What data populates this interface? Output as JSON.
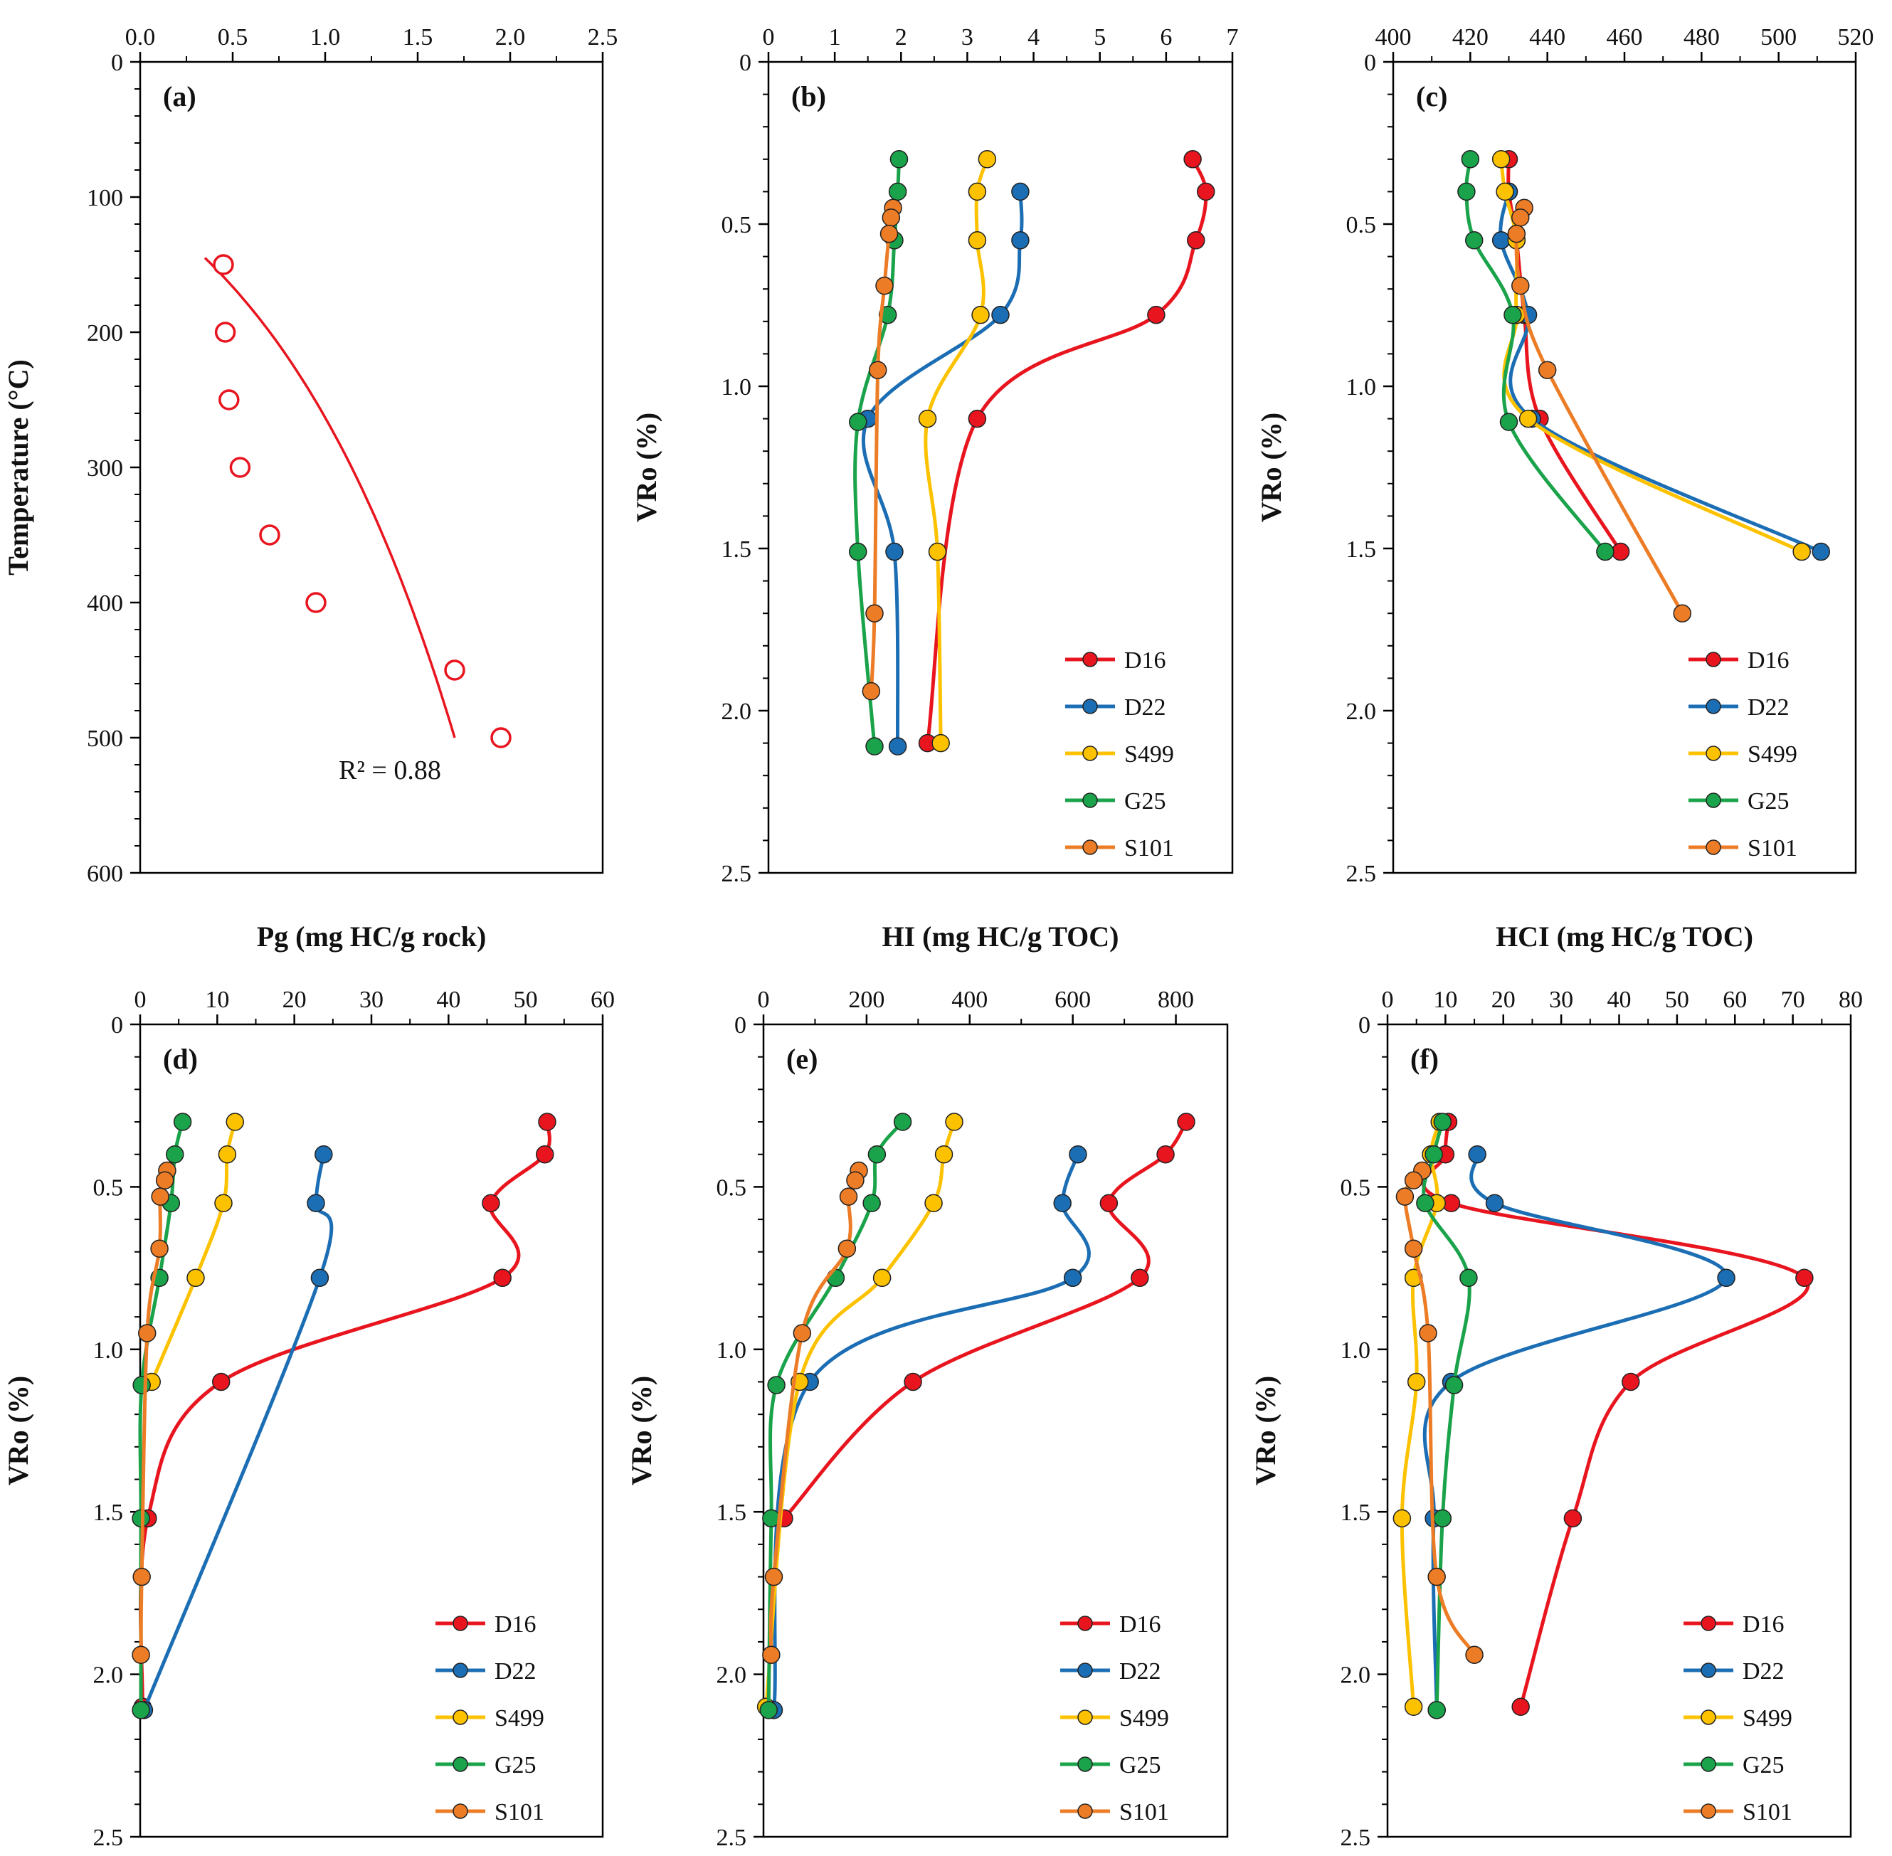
{
  "colors": {
    "D16": "#e8151f",
    "D22": "#1c6eb4",
    "S499": "#fcc200",
    "G25": "#1aa34a",
    "S101": "#ec7c25",
    "fit": "#e8151f"
  },
  "chart_data": [
    {
      "id": "a",
      "panel_label": "(a)",
      "type": "scatter",
      "xlabel": "Pg (mg HC/g rock)",
      "ylabel": "Temperature (°C)",
      "xlim": [
        0,
        2.5
      ],
      "ylim": [
        0,
        600
      ],
      "y_inverted": true,
      "x_axis_position": "top",
      "xticks": [
        0,
        0.5,
        1,
        1.5,
        2,
        2.5
      ],
      "xtick_labels": [
        "0.0",
        "0.5",
        "1.0",
        "1.5",
        "2.0",
        "2.5"
      ],
      "yticks": [
        0,
        100,
        200,
        300,
        400,
        500,
        600
      ],
      "ytick_labels": [
        "0",
        "100",
        "200",
        "300",
        "400",
        "500",
        "600"
      ],
      "series": [
        {
          "name": "Pg",
          "color": "#e8151f",
          "marker": "open-circle",
          "x": [
            0.45,
            0.46,
            0.48,
            0.54,
            0.7,
            0.95,
            1.7,
            1.95
          ],
          "y": [
            150,
            200,
            250,
            300,
            350,
            400,
            450,
            500
          ]
        }
      ],
      "fit": {
        "type": "exponential",
        "color": "#e8151f",
        "x_range": [
          0.35,
          1.7
        ],
        "y_range": [
          145,
          500
        ],
        "label": "R² = 0.88",
        "label_position": "bottom-center"
      }
    },
    {
      "id": "b",
      "panel_label": "(b)",
      "type": "line",
      "xlabel": "HI (mg HC/g TOC)",
      "ylabel": "VRo (%)",
      "xlim": [
        0,
        7
      ],
      "ylim": [
        0,
        2.5
      ],
      "y_inverted": true,
      "x_axis_position": "top",
      "xticks": [
        0,
        1,
        2,
        3,
        4,
        5,
        6,
        7
      ],
      "xtick_labels": [
        "0",
        "1",
        "2",
        "3",
        "4",
        "5",
        "6",
        "7"
      ],
      "yticks": [
        0,
        0.5,
        1,
        1.5,
        2,
        2.5
      ],
      "ytick_labels": [
        "0",
        "0.5",
        "1.0",
        "1.5",
        "2.0",
        "2.5"
      ],
      "legend_position": "bottom-right",
      "series": [
        {
          "name": "D16",
          "x": [
            6.4,
            6.6,
            6.45,
            5.85,
            3.15,
            2.4
          ],
          "y": [
            0.3,
            0.4,
            0.55,
            0.78,
            1.1,
            2.1
          ]
        },
        {
          "name": "D22",
          "x": [
            3.8,
            3.8,
            3.5,
            1.5,
            1.9,
            1.95
          ],
          "y": [
            0.4,
            0.55,
            0.78,
            1.1,
            1.51,
            2.11
          ]
        },
        {
          "name": "S499",
          "x": [
            3.3,
            3.15,
            3.15,
            3.2,
            2.4,
            2.55,
            2.6
          ],
          "y": [
            0.3,
            0.4,
            0.55,
            0.78,
            1.1,
            1.51,
            2.1
          ]
        },
        {
          "name": "G25",
          "x": [
            1.97,
            1.95,
            1.9,
            1.8,
            1.35,
            1.35,
            1.6
          ],
          "y": [
            0.3,
            0.4,
            0.55,
            0.78,
            1.11,
            1.51,
            2.11
          ]
        },
        {
          "name": "S101",
          "x": [
            1.88,
            1.85,
            1.82,
            1.75,
            1.65,
            1.6,
            1.55
          ],
          "y": [
            0.45,
            0.48,
            0.53,
            0.69,
            0.95,
            1.7,
            1.94
          ]
        }
      ]
    },
    {
      "id": "c",
      "panel_label": "(c)",
      "type": "line",
      "xlabel": "HCI (mg HC/g TOC)",
      "ylabel": "VRo (%)",
      "xlim": [
        400,
        520
      ],
      "ylim": [
        0,
        2.5
      ],
      "y_inverted": true,
      "x_axis_position": "top",
      "xticks": [
        400,
        420,
        440,
        460,
        480,
        500,
        520
      ],
      "xtick_labels": [
        "400",
        "420",
        "440",
        "460",
        "480",
        "500",
        "520"
      ],
      "yticks": [
        0,
        0.5,
        1,
        1.5,
        2,
        2.5
      ],
      "ytick_labels": [
        "0",
        "0.5",
        "1.0",
        "1.5",
        "2.0",
        "2.5"
      ],
      "legend_position": "bottom-right",
      "series": [
        {
          "name": "D16",
          "x": [
            430,
            430,
            432,
            434,
            438,
            459
          ],
          "y": [
            0.3,
            0.4,
            0.55,
            0.78,
            1.1,
            1.51
          ]
        },
        {
          "name": "D22",
          "x": [
            430,
            428,
            435,
            436,
            511
          ],
          "y": [
            0.4,
            0.55,
            0.78,
            1.1,
            1.51
          ]
        },
        {
          "name": "S499",
          "x": [
            428,
            429,
            432,
            432,
            435,
            506
          ],
          "y": [
            0.3,
            0.4,
            0.55,
            0.78,
            1.1,
            1.51
          ]
        },
        {
          "name": "G25",
          "x": [
            420,
            419,
            421,
            431,
            430,
            455
          ],
          "y": [
            0.3,
            0.4,
            0.55,
            0.78,
            1.11,
            1.51
          ]
        },
        {
          "name": "S101",
          "x": [
            434,
            433,
            432,
            433,
            440,
            475
          ],
          "y": [
            0.45,
            0.48,
            0.53,
            0.69,
            0.95,
            1.7
          ]
        }
      ]
    },
    {
      "id": "d",
      "panel_label": "(d)",
      "type": "line",
      "xlabel": "",
      "ylabel": "VRo (%)",
      "xlim": [
        0,
        60
      ],
      "ylim": [
        0,
        2.5
      ],
      "y_inverted": true,
      "x_axis_position": "top",
      "xticks": [
        0,
        10,
        20,
        30,
        40,
        50,
        60
      ],
      "xtick_labels": [
        "0",
        "10",
        "20",
        "30",
        "40",
        "50",
        "60"
      ],
      "yticks": [
        0,
        0.5,
        1,
        1.5,
        2,
        2.5
      ],
      "ytick_labels": [
        "0",
        "0.5",
        "1.0",
        "1.5",
        "2.0",
        "2.5"
      ],
      "legend_position": "bottom-right",
      "series": [
        {
          "name": "D16",
          "x": [
            52.8,
            52.5,
            45.5,
            47,
            10.5,
            1,
            0.3
          ],
          "y": [
            0.3,
            0.4,
            0.55,
            0.78,
            1.1,
            1.52,
            2.1
          ]
        },
        {
          "name": "D22",
          "x": [
            23.8,
            22.8,
            23.3,
            0.5
          ],
          "y": [
            0.4,
            0.55,
            0.78,
            2.11
          ]
        },
        {
          "name": "S499",
          "x": [
            12.3,
            11.3,
            10.8,
            7.2,
            1.5
          ],
          "y": [
            0.3,
            0.4,
            0.55,
            0.78,
            1.1
          ]
        },
        {
          "name": "G25",
          "x": [
            5.5,
            4.5,
            4,
            2.5,
            0.2,
            0.1,
            0.1
          ],
          "y": [
            0.3,
            0.4,
            0.55,
            0.78,
            1.11,
            1.52,
            2.11
          ]
        },
        {
          "name": "S101",
          "x": [
            3.5,
            3.2,
            2.6,
            2.5,
            0.9,
            0.2,
            0.1
          ],
          "y": [
            0.45,
            0.48,
            0.53,
            0.69,
            0.95,
            1.7,
            1.94
          ]
        }
      ]
    },
    {
      "id": "e",
      "panel_label": "(e)",
      "type": "line",
      "xlabel": "",
      "ylabel": "VRo (%)",
      "xlim": [
        0,
        900
      ],
      "ylim": [
        0,
        2.5
      ],
      "y_inverted": true,
      "x_axis_position": "top",
      "xticks": [
        0,
        200,
        400,
        600,
        800
      ],
      "xtick_labels": [
        "0",
        "200",
        "400",
        "600",
        "800"
      ],
      "yticks": [
        0,
        0.5,
        1,
        1.5,
        2,
        2.5
      ],
      "ytick_labels": [
        "0",
        "0.5",
        "1.0",
        "1.5",
        "2.0",
        "2.5"
      ],
      "legend_position": "bottom-right",
      "series": [
        {
          "name": "D16",
          "x": [
            820,
            780,
            670,
            730,
            290,
            40
          ],
          "y": [
            0.3,
            0.4,
            0.55,
            0.78,
            1.1,
            1.52
          ]
        },
        {
          "name": "D22",
          "x": [
            610,
            580,
            600,
            90,
            20
          ],
          "y": [
            0.4,
            0.55,
            0.78,
            1.1,
            2.11
          ]
        },
        {
          "name": "S499",
          "x": [
            370,
            350,
            330,
            230,
            70,
            5
          ],
          "y": [
            0.3,
            0.4,
            0.55,
            0.78,
            1.1,
            2.1
          ]
        },
        {
          "name": "G25",
          "x": [
            270,
            220,
            210,
            140,
            25,
            15,
            10
          ],
          "y": [
            0.3,
            0.4,
            0.55,
            0.78,
            1.11,
            1.52,
            2.11
          ]
        },
        {
          "name": "S101",
          "x": [
            185,
            178,
            165,
            162,
            75,
            20,
            15
          ],
          "y": [
            0.45,
            0.48,
            0.53,
            0.69,
            0.95,
            1.7,
            1.94
          ]
        }
      ]
    },
    {
      "id": "f",
      "panel_label": "(f)",
      "type": "line",
      "xlabel": "",
      "ylabel": "VRo (%)",
      "xlim": [
        0,
        80
      ],
      "ylim": [
        0,
        2.5
      ],
      "y_inverted": true,
      "x_axis_position": "top",
      "xticks": [
        0,
        10,
        20,
        30,
        40,
        50,
        60,
        70,
        80
      ],
      "xtick_labels": [
        "0",
        "10",
        "20",
        "30",
        "40",
        "50",
        "60",
        "70",
        "80"
      ],
      "yticks": [
        0,
        0.5,
        1,
        1.5,
        2,
        2.5
      ],
      "ytick_labels": [
        "0",
        "0.5",
        "1.0",
        "1.5",
        "2.0",
        "2.5"
      ],
      "legend_position": "bottom-right",
      "series": [
        {
          "name": "D16",
          "x": [
            10.5,
            10,
            11,
            72,
            42,
            32,
            23
          ],
          "y": [
            0.3,
            0.4,
            0.55,
            0.78,
            1.1,
            1.52,
            2.1
          ]
        },
        {
          "name": "D22",
          "x": [
            15.5,
            18.5,
            58.5,
            11,
            8,
            8.5
          ],
          "y": [
            0.4,
            0.55,
            0.78,
            1.1,
            1.52,
            2.11
          ]
        },
        {
          "name": "S499",
          "x": [
            9,
            7.5,
            8.5,
            4.5,
            5,
            2.5,
            4.5
          ],
          "y": [
            0.3,
            0.4,
            0.55,
            0.78,
            1.1,
            1.52,
            2.1
          ]
        },
        {
          "name": "G25",
          "x": [
            9.5,
            8,
            6.5,
            14,
            11.5,
            9.5,
            8.5
          ],
          "y": [
            0.3,
            0.4,
            0.55,
            0.78,
            1.11,
            1.52,
            2.11
          ]
        },
        {
          "name": "S101",
          "x": [
            6,
            4.5,
            3,
            4.5,
            7,
            8.5,
            15
          ],
          "y": [
            0.45,
            0.48,
            0.53,
            0.69,
            0.95,
            1.7,
            1.94
          ]
        }
      ]
    }
  ]
}
